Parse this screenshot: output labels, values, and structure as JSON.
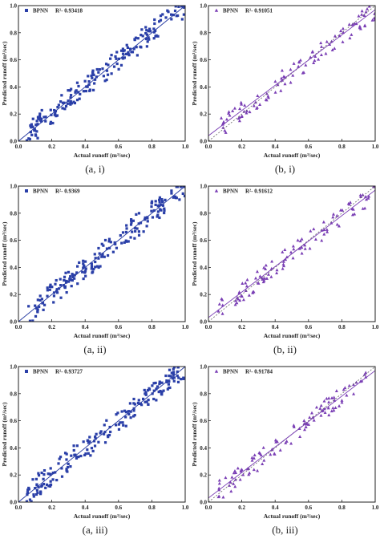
{
  "chart_data": [
    {
      "type": "scatter",
      "caption": "(a, i)",
      "legend": {
        "name": "BPNN",
        "r2": "R²- 0.93418"
      },
      "xlabel": "Actual runoff (m³/sec)",
      "ylabel": "Predicted runoff (m³/sec)",
      "xlim": [
        0,
        1
      ],
      "ylim": [
        0,
        1
      ],
      "xticks": [
        "0.0",
        "0.2",
        "0.4",
        "0.6",
        "0.8",
        "1.0"
      ],
      "yticks": [
        "0.0",
        "0.2",
        "0.4",
        "0.6",
        "0.8",
        "1.0"
      ],
      "marker": "square",
      "color": "#2a3fa8",
      "fit": {
        "slope": 1.0,
        "intercept": 0.0
      },
      "band": 0.08,
      "n": 190,
      "seed": 11
    },
    {
      "type": "scatter",
      "caption": "(b, i)",
      "legend": {
        "name": "BPNN",
        "r2": "R²- 0.91051"
      },
      "xlabel": "Actual runoff (m³/sec)",
      "ylabel": "Predicted runoff (m³/sec)",
      "xlim": [
        0,
        1
      ],
      "ylim": [
        0,
        1
      ],
      "xticks": [
        "0.0",
        "0.2",
        "0.4",
        "0.6",
        "0.8",
        "1.0"
      ],
      "yticks": [
        "0.0",
        "0.2",
        "0.4",
        "0.6",
        "0.8",
        "1.0"
      ],
      "marker": "triangle",
      "color": "#7a3fb5",
      "fit": {
        "slope": 0.93,
        "intercept": 0.04
      },
      "band": 0.07,
      "n": 105,
      "seed": 23
    },
    {
      "type": "scatter",
      "caption": "(a, ii)",
      "legend": {
        "name": "BPNN",
        "r2": "R²- 0.9369"
      },
      "xlabel": "Actual runoff (m³/sec)",
      "ylabel": "Predicted runoff (m³/sec)",
      "xlim": [
        0,
        1
      ],
      "ylim": [
        0,
        1
      ],
      "xticks": [
        "0.0",
        "0.2",
        "0.4",
        "0.6",
        "0.8",
        "1.0"
      ],
      "yticks": [
        "0.0",
        "0.2",
        "0.4",
        "0.6",
        "0.8",
        "1.0"
      ],
      "marker": "square",
      "color": "#2a3fa8",
      "fit": {
        "slope": 1.0,
        "intercept": 0.0
      },
      "band": 0.08,
      "n": 190,
      "seed": 37
    },
    {
      "type": "scatter",
      "caption": "(b, ii)",
      "legend": {
        "name": "BPNN",
        "r2": "R²- 0.91612"
      },
      "xlabel": "Actual runoff (m³/sec)",
      "ylabel": "Predicted runoff (m³/sec)",
      "xlim": [
        0,
        1
      ],
      "ylim": [
        0,
        1
      ],
      "xticks": [
        "0.0",
        "0.2",
        "0.4",
        "0.6",
        "0.8",
        "1.0"
      ],
      "yticks": [
        "0.0",
        "0.2",
        "0.4",
        "0.6",
        "0.8",
        "1.0"
      ],
      "marker": "triangle",
      "color": "#7a3fb5",
      "fit": {
        "slope": 0.94,
        "intercept": 0.03
      },
      "band": 0.07,
      "n": 105,
      "seed": 51
    },
    {
      "type": "scatter",
      "caption": "(a, iii)",
      "legend": {
        "name": "BPNN",
        "r2": "R²- 0.93727"
      },
      "xlabel": "Actual runoff (m³/sec)",
      "ylabel": "Predicted runoff (m³/sec)",
      "xlim": [
        0,
        1
      ],
      "ylim": [
        0,
        1
      ],
      "xticks": [
        "0.0",
        "0.2",
        "0.4",
        "0.6",
        "0.8",
        "1.0"
      ],
      "yticks": [
        "0.0",
        "0.2",
        "0.4",
        "0.6",
        "0.8",
        "1.0"
      ],
      "marker": "square",
      "color": "#2a3fa8",
      "fit": {
        "slope": 1.0,
        "intercept": 0.0
      },
      "band": 0.08,
      "n": 190,
      "seed": 67
    },
    {
      "type": "scatter",
      "caption": "(b, iii)",
      "legend": {
        "name": "BPNN",
        "r2": "R²- 0.91784"
      },
      "xlabel": "Actual runoff (m³/sec)",
      "ylabel": "Predicted runoff (m³/sec)",
      "xlim": [
        0,
        1
      ],
      "ylim": [
        0,
        1
      ],
      "xticks": [
        "0.0",
        "0.2",
        "0.4",
        "0.6",
        "0.8",
        "1.0"
      ],
      "yticks": [
        "0.0",
        "0.2",
        "0.4",
        "0.6",
        "0.8",
        "1.0"
      ],
      "marker": "triangle",
      "color": "#7a3fb5",
      "fit": {
        "slope": 0.94,
        "intercept": 0.03
      },
      "band": 0.07,
      "n": 105,
      "seed": 83
    }
  ]
}
